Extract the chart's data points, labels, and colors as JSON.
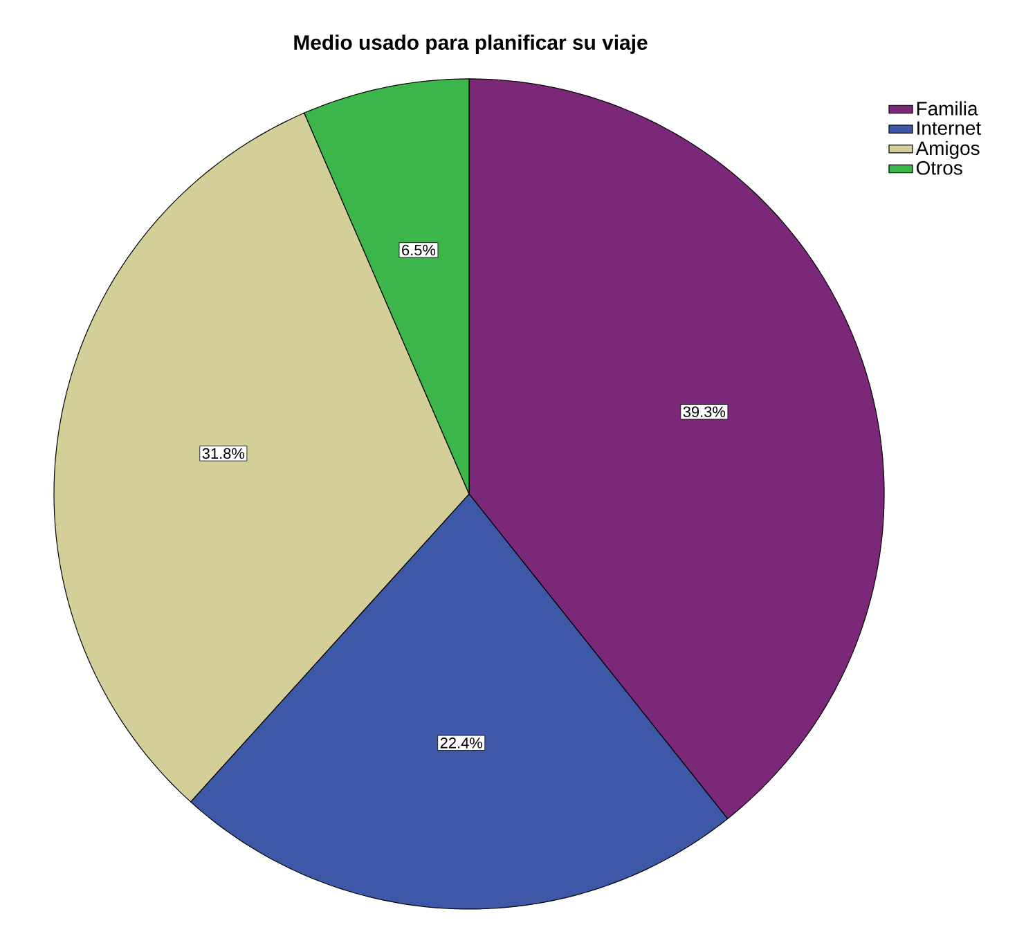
{
  "chart_data": {
    "type": "pie",
    "title": "Medio usado para planificar su viaje",
    "categories": [
      "Familia",
      "Internet",
      "Amigos",
      "Otros"
    ],
    "values": [
      39.3,
      22.4,
      31.8,
      6.5
    ],
    "value_labels": [
      "39.3%",
      "22.4%",
      "31.8%",
      "6.5%"
    ],
    "colors": [
      "#7b2878",
      "#3e58a8",
      "#d4cf98",
      "#3cb54a"
    ],
    "legend": "top right"
  }
}
